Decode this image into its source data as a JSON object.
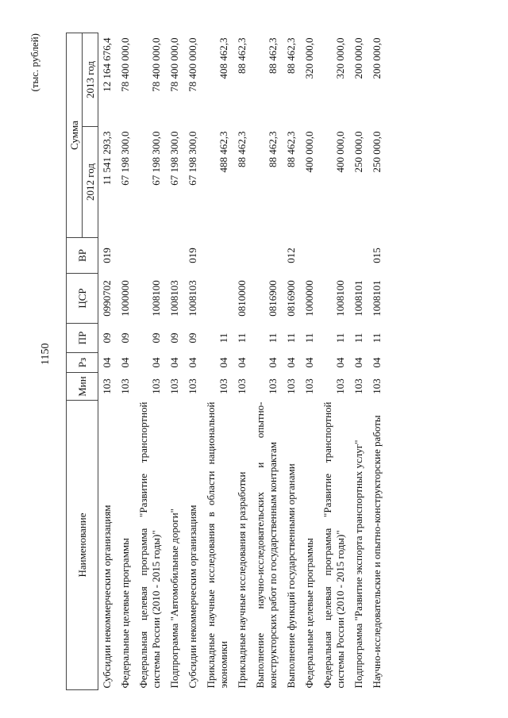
{
  "page_number": "1150",
  "unit": "(тыс. рублей)",
  "headers": {
    "name": "Наименование",
    "min": "Мин",
    "rz": "Рз",
    "pr": "ПР",
    "csr": "ЦСР",
    "vr": "ВР",
    "sum": "Сумма",
    "y2012": "2012 год",
    "y2013": "2013 год"
  },
  "rows": [
    {
      "name": "Субсидии некоммерческим организациям",
      "min": "103",
      "rz": "04",
      "pr": "09",
      "csr": "0990702",
      "vr": "019",
      "y2012": "11 541 293,3",
      "y2013": "12 164 676,4"
    },
    {
      "name": "Федеральные целевые программы",
      "min": "103",
      "rz": "04",
      "pr": "09",
      "csr": "1000000",
      "vr": "",
      "y2012": "67 198 300,0",
      "y2013": "78 400 000,0"
    },
    {
      "name": "Федеральная целевая программа \"Развитие транспортной системы России (2010 - 2015 годы)\"",
      "min": "103",
      "rz": "04",
      "pr": "09",
      "csr": "1008100",
      "vr": "",
      "y2012": "67 198 300,0",
      "y2013": "78 400 000,0"
    },
    {
      "name": "Подпрограмма \"Автомобильные дороги\"",
      "min": "103",
      "rz": "04",
      "pr": "09",
      "csr": "1008103",
      "vr": "",
      "y2012": "67 198 300,0",
      "y2013": "78 400 000,0"
    },
    {
      "name": "Субсидии некоммерческим организациям",
      "min": "103",
      "rz": "04",
      "pr": "09",
      "csr": "1008103",
      "vr": "019",
      "y2012": "67 198 300,0",
      "y2013": "78 400 000,0"
    },
    {
      "name": "Прикладные научные исследования в области национальной экономики",
      "min": "103",
      "rz": "04",
      "pr": "11",
      "csr": "",
      "vr": "",
      "y2012": "488 462,3",
      "y2013": "408 462,3"
    },
    {
      "name": "Прикладные научные исследования и разработки",
      "min": "103",
      "rz": "04",
      "pr": "11",
      "csr": "0810000",
      "vr": "",
      "y2012": "88 462,3",
      "y2013": "88 462,3"
    },
    {
      "name": "Выполнение научно-исследовательских и опытно-конструкторских работ по государственным контрактам",
      "min": "103",
      "rz": "04",
      "pr": "11",
      "csr": "0816900",
      "vr": "",
      "y2012": "88 462,3",
      "y2013": "88 462,3"
    },
    {
      "name": "Выполнение функций государственными органами",
      "min": "103",
      "rz": "04",
      "pr": "11",
      "csr": "0816900",
      "vr": "012",
      "y2012": "88 462,3",
      "y2013": "88 462,3"
    },
    {
      "name": "Федеральные целевые программы",
      "min": "103",
      "rz": "04",
      "pr": "11",
      "csr": "1000000",
      "vr": "",
      "y2012": "400 000,0",
      "y2013": "320 000,0"
    },
    {
      "name": "Федеральная целевая программа \"Развитие транспортной системы России (2010 - 2015 годы)\"",
      "min": "103",
      "rz": "04",
      "pr": "11",
      "csr": "1008100",
      "vr": "",
      "y2012": "400 000,0",
      "y2013": "320 000,0"
    },
    {
      "name": "Подпрограмма \"Развитие экспорта транспортных услуг\"",
      "min": "103",
      "rz": "04",
      "pr": "11",
      "csr": "1008101",
      "vr": "",
      "y2012": "250 000,0",
      "y2013": "200 000,0"
    },
    {
      "name": "Научно-исследовательские и опытно-конструкторские работы",
      "min": "103",
      "rz": "04",
      "pr": "11",
      "csr": "1008101",
      "vr": "015",
      "y2012": "250 000,0",
      "y2013": "200 000,0"
    }
  ]
}
